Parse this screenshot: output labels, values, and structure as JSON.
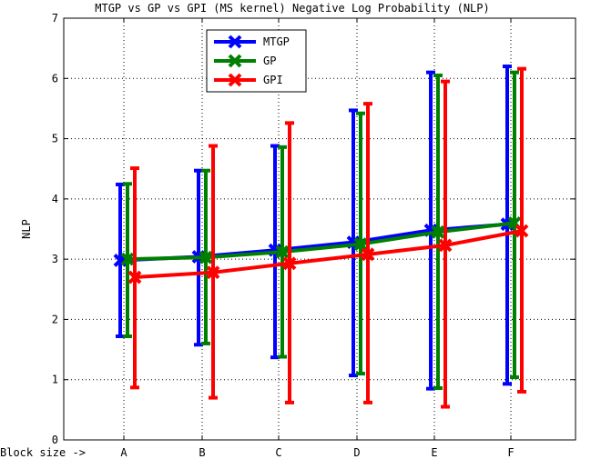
{
  "chart_data": {
    "type": "line",
    "title": "MTGP vs GP vs GPI (MS kernel) Negative Log Probability (NLP)",
    "xlabel": "Block size ->",
    "ylabel": "NLP",
    "categories": [
      "A",
      "B",
      "C",
      "D",
      "E",
      "F"
    ],
    "ylim": [
      0,
      7
    ],
    "yticks": [
      "0",
      "1",
      "2",
      "3",
      "4",
      "5",
      "6",
      "7"
    ],
    "grid": true,
    "legend_position": "top-left",
    "series": [
      {
        "name": "MTGP",
        "color": "#0000ff",
        "values": [
          2.98,
          3.04,
          3.15,
          3.28,
          3.48,
          3.58
        ],
        "err_low": [
          1.72,
          1.58,
          1.37,
          1.07,
          0.85,
          0.93
        ],
        "err_high": [
          4.24,
          4.47,
          4.88,
          5.47,
          6.1,
          6.2
        ]
      },
      {
        "name": "GP",
        "color": "#008000",
        "values": [
          3.0,
          3.03,
          3.12,
          3.25,
          3.45,
          3.6
        ],
        "err_low": [
          1.72,
          1.6,
          1.38,
          1.1,
          0.86,
          1.04
        ],
        "err_high": [
          4.25,
          4.47,
          4.86,
          5.42,
          6.05,
          6.1
        ]
      },
      {
        "name": "GPI",
        "color": "#ff0000",
        "values": [
          2.7,
          2.78,
          2.93,
          3.08,
          3.23,
          3.47
        ],
        "err_low": [
          0.87,
          0.7,
          0.62,
          0.62,
          0.55,
          0.8
        ],
        "err_high": [
          4.51,
          4.88,
          5.26,
          5.58,
          5.95,
          6.16
        ]
      }
    ]
  }
}
